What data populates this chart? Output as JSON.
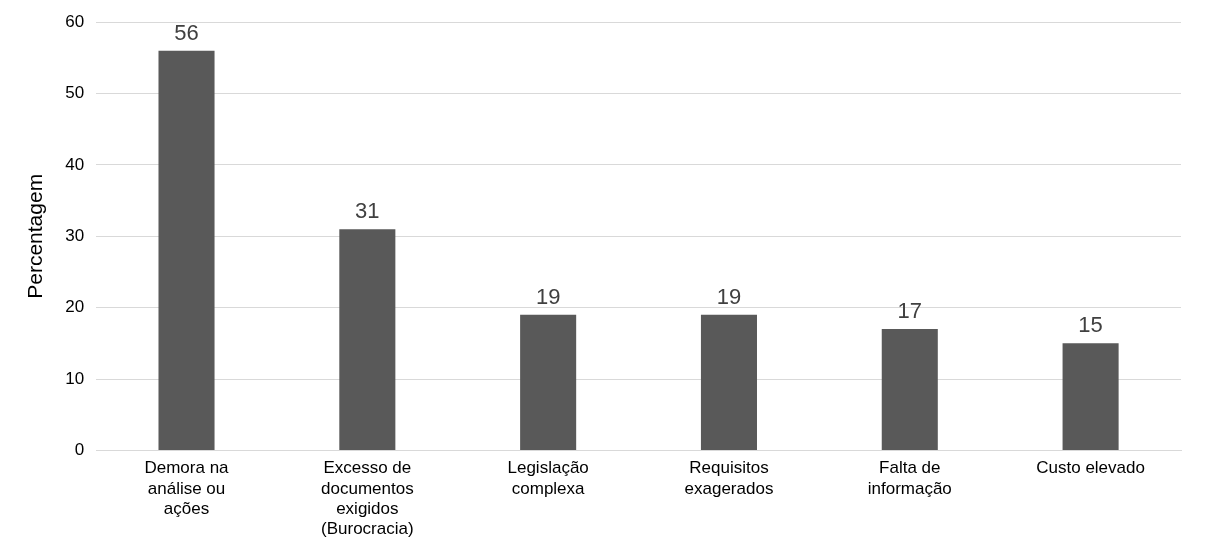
{
  "chart_data": {
    "type": "bar",
    "ylabel": "Percentagem",
    "categories": [
      "Demora na análise ou ações",
      "Excesso de documentos exigidos (Burocracia)",
      "Legislação complexa",
      "Requisitos exagerados",
      "Falta de informação",
      "Custo elevado"
    ],
    "values": [
      56,
      31,
      19,
      19,
      17,
      15
    ],
    "color": "#595959",
    "ylim": [
      0,
      60
    ],
    "yticks": [
      0,
      10,
      20,
      30,
      40,
      50,
      60
    ],
    "grid": "y",
    "data_labels": true,
    "legend": false
  }
}
